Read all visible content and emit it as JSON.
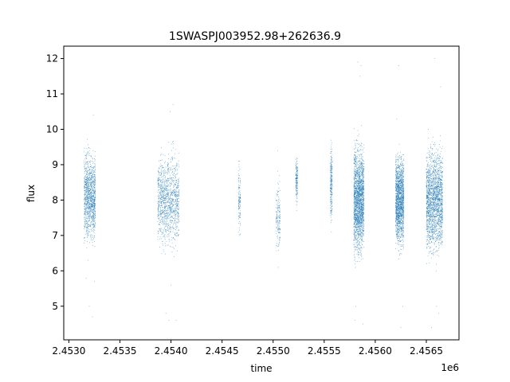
{
  "chart_data": {
    "type": "scatter",
    "title": "1SWASPJ003952.98+262636.9",
    "xlabel": "time",
    "ylabel": "flux",
    "x_offset_label": "1e6",
    "xlim": [
      2452950,
      2456820
    ],
    "ylim": [
      4.05,
      12.35
    ],
    "x_ticks": [
      2453000,
      2453500,
      2454000,
      2454500,
      2455000,
      2455500,
      2456000,
      2456500
    ],
    "x_tick_labels": [
      "2.4530",
      "2.4535",
      "2.4540",
      "2.4545",
      "2.4550",
      "2.4555",
      "2.4560",
      "2.4565"
    ],
    "y_ticks": [
      5,
      6,
      7,
      8,
      9,
      10,
      11,
      12
    ],
    "y_tick_labels": [
      "5",
      "6",
      "7",
      "8",
      "9",
      "10",
      "11",
      "12"
    ],
    "grid": false,
    "series_color": "#1f77b4",
    "clusters": [
      {
        "x_start": 2453150,
        "x_end": 2453260,
        "y_center": 8.1,
        "y_spread": 1.0,
        "density": 3,
        "outliers": [
          [
            2453170,
            5.8
          ],
          [
            2453200,
            5.0
          ],
          [
            2453230,
            4.7
          ],
          [
            2453240,
            10.4
          ],
          [
            2453250,
            5.7
          ],
          [
            2453190,
            6.3
          ]
        ]
      },
      {
        "x_start": 2453870,
        "x_end": 2454080,
        "y_center": 8.0,
        "y_spread": 1.05,
        "density": 3,
        "outliers": [
          [
            2453950,
            4.8
          ],
          [
            2453980,
            4.6
          ],
          [
            2454000,
            5.6
          ],
          [
            2454020,
            10.7
          ],
          [
            2454050,
            4.6
          ],
          [
            2453990,
            10.5
          ],
          [
            2454030,
            6.4
          ]
        ]
      },
      {
        "x_start": 2454660,
        "x_end": 2454680,
        "y_center": 8.0,
        "y_spread": 0.8,
        "density": 0.3,
        "outliers": [
          [
            2454670,
            7.0
          ],
          [
            2454665,
            9.0
          ]
        ]
      },
      {
        "x_start": 2455030,
        "x_end": 2455070,
        "y_center": 7.5,
        "y_spread": 0.8,
        "density": 0.4,
        "outliers": [
          [
            2455050,
            6.1
          ],
          [
            2455045,
            9.4
          ]
        ]
      },
      {
        "x_start": 2455220,
        "x_end": 2455240,
        "y_center": 8.6,
        "y_spread": 0.5,
        "density": 0.4,
        "outliers": [
          [
            2455230,
            7.7
          ]
        ]
      },
      {
        "x_start": 2455560,
        "x_end": 2455580,
        "y_center": 8.5,
        "y_spread": 0.9,
        "density": 0.6,
        "outliers": [
          [
            2455570,
            7.1
          ]
        ]
      },
      {
        "x_start": 2455790,
        "x_end": 2455890,
        "y_center": 8.0,
        "y_spread": 1.25,
        "density": 5,
        "outliers": [
          [
            2455800,
            4.6
          ],
          [
            2455830,
            11.9
          ],
          [
            2455860,
            11.8
          ],
          [
            2455880,
            4.5
          ],
          [
            2455810,
            5.0
          ],
          [
            2455850,
            11.5
          ]
        ]
      },
      {
        "x_start": 2456200,
        "x_end": 2456280,
        "y_center": 8.0,
        "y_spread": 1.05,
        "density": 4,
        "outliers": [
          [
            2456230,
            11.8
          ],
          [
            2456250,
            4.4
          ],
          [
            2456270,
            5.0
          ],
          [
            2456210,
            10.3
          ]
        ]
      },
      {
        "x_start": 2456500,
        "x_end": 2456660,
        "y_center": 8.0,
        "y_spread": 1.2,
        "density": 5,
        "outliers": [
          [
            2456550,
            4.4
          ],
          [
            2456580,
            12.0
          ],
          [
            2456620,
            4.8
          ],
          [
            2456640,
            11.2
          ],
          [
            2456600,
            5.0
          ],
          [
            2456520,
            10.0
          ]
        ]
      }
    ]
  }
}
